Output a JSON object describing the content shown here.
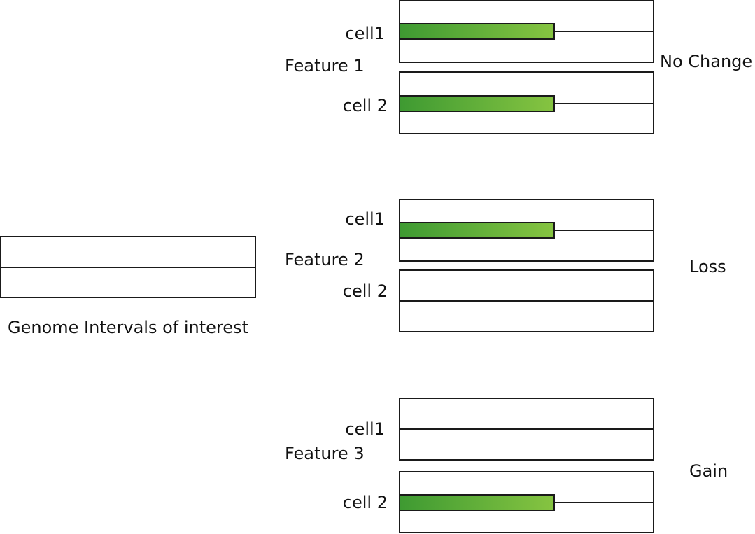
{
  "genome_label": "Genome Intervals of interest",
  "colors": {
    "bar_dark": "#3e9a32",
    "bar_light": "#86c441",
    "line": "#1a1a1a"
  },
  "features": [
    {
      "label": "Feature 1",
      "outcome": "No Change",
      "cells": [
        {
          "label": "cell1",
          "signal": true
        },
        {
          "label": "cell 2",
          "signal": true
        }
      ]
    },
    {
      "label": "Feature 2",
      "outcome": "Loss",
      "cells": [
        {
          "label": "cell1",
          "signal": true
        },
        {
          "label": "cell 2",
          "signal": false
        }
      ]
    },
    {
      "label": "Feature 3",
      "outcome": "Gain",
      "cells": [
        {
          "label": "cell1",
          "signal": false
        },
        {
          "label": "cell 2",
          "signal": true
        }
      ]
    }
  ]
}
